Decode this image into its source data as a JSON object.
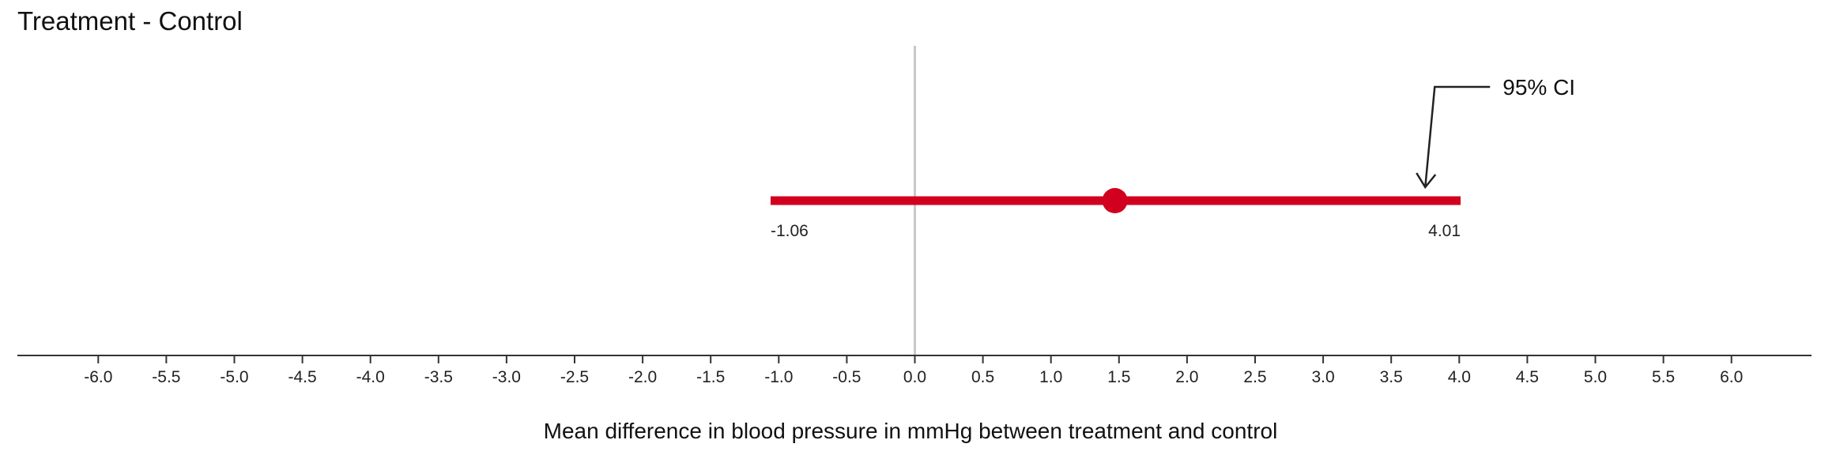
{
  "chart_data": {
    "type": "interval",
    "title": "Treatment - Control",
    "xlabel": "Mean difference in blood pressure in mmHg between treatment and control",
    "ylabel": "",
    "xlim": [
      -6.6,
      6.6
    ],
    "x_ticks": [
      "-6.0",
      "-5.5",
      "-5.0",
      "-4.5",
      "-4.0",
      "-3.5",
      "-3.0",
      "-2.5",
      "-2.0",
      "-1.5",
      "-1.0",
      "-0.5",
      "0.0",
      "0.5",
      "1.0",
      "1.5",
      "2.0",
      "2.5",
      "3.0",
      "3.5",
      "4.0",
      "4.5",
      "5.0",
      "5.5",
      "6.0"
    ],
    "reference_line": 0,
    "estimate": 1.47,
    "ci_lower": -1.06,
    "ci_upper": 4.01,
    "ci_lower_label": "-1.06",
    "ci_upper_label": "4.01",
    "annotation": {
      "text": "95% CI",
      "points_to": 3.75
    },
    "grid": false,
    "legend": "none",
    "colors": {
      "interval": "#d1001f",
      "reference": "#c8c8c8",
      "axis": "#333333",
      "text": "#222222"
    }
  }
}
